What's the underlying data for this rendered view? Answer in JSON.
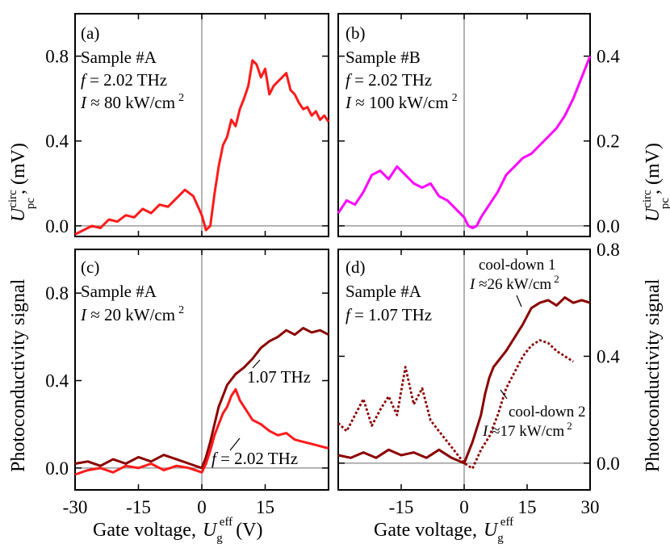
{
  "figure": {
    "left_ylabel_top": "U",
    "left_ylabel_top_sup": "circ",
    "left_ylabel_top_sub": "pc",
    "left_ylabel_top_unit": ", (mV)",
    "right_ylabel_top": "U",
    "right_ylabel_top_sup": "circ",
    "right_ylabel_top_sub": "pc",
    "right_ylabel_top_unit": ", (mV)",
    "left_ylabel_bottom": "Photoconductivity signal",
    "right_ylabel_bottom": "Photoconductivity signal",
    "xlabel_left_text": "Gate voltage,",
    "xlabel_left_sym": "U",
    "xlabel_left_sub": "g",
    "xlabel_left_sup": "eff",
    "xlabel_left_unit": "(V)",
    "xlabel_right_text": "Gate voltage,",
    "xlabel_right_sym": "U",
    "xlabel_right_sub": "g",
    "xlabel_right_sup": "eff",
    "x_ticks_left": [
      "-30",
      "-15",
      "0",
      "15"
    ],
    "x_ticks_right": [
      "-15",
      "0",
      "15",
      "30"
    ]
  },
  "panels": {
    "a": {
      "label": "(a)",
      "line1": "Sample #A",
      "line2_sym": "f",
      "line2_rest": " = 2.02 THz",
      "line3_sym": "I",
      "line3_rest": " ≈ 80 kW/cm",
      "line3_sup": "2",
      "y_ticks": [
        "0.0",
        "0.4",
        "0.8"
      ]
    },
    "b": {
      "label": "(b)",
      "line1": "Sample #B",
      "line2_sym": "f",
      "line2_rest": " = 2.02 THz",
      "line3_sym": "I",
      "line3_rest": " ≈ 100 kW/cm",
      "line3_sup": "2",
      "y_ticks": [
        "0.0",
        "0.2",
        "0.4"
      ]
    },
    "c": {
      "label": "(c)",
      "line1": "Sample #A",
      "line2_sym": "I",
      "line2_rest": " ≈ 20 kW/cm",
      "line2_sup": "2",
      "y_ticks": [
        "0.0",
        "0.4",
        "0.8"
      ],
      "ann_107": "1.07 THz",
      "ann_202_sym": "f",
      "ann_202_rest": " = 2.02 THz"
    },
    "d": {
      "label": "(d)",
      "line1": "Sample #A",
      "line2_sym": "f",
      "line2_rest": " = 1.07 THz",
      "y_ticks": [
        "0.0",
        "0.4",
        "0.8"
      ],
      "cd1": "cool-down 1",
      "cd1_sym": "I",
      "cd1_rest": " ≈26 kW/cm",
      "cd1_sup": "2",
      "cd2": "cool-down 2",
      "cd2_sym": "I",
      "cd2_rest": " ≈17 kW/cm",
      "cd2_sup": "2"
    }
  },
  "chart_data": [
    {
      "type": "line",
      "panel": "a",
      "xlabel": "Gate voltage, U_g^eff (V)",
      "ylabel": "U_pc^circ, (mV)",
      "xlim": [
        -30,
        30
      ],
      "ylim": [
        -0.05,
        1.0
      ],
      "grid": false,
      "series": [
        {
          "color": "#ff1a1a",
          "x": [
            -30,
            -28,
            -26,
            -24,
            -22,
            -20,
            -18,
            -16,
            -14,
            -12,
            -10,
            -8,
            -6,
            -4,
            -2,
            0,
            1,
            2,
            3,
            4,
            5,
            6,
            7,
            8,
            9,
            10,
            11,
            12,
            13,
            14,
            15,
            16,
            17,
            18,
            19,
            20,
            21,
            22,
            23,
            24,
            25,
            26,
            27,
            28,
            29,
            30
          ],
          "y": [
            -0.04,
            -0.02,
            0.0,
            -0.01,
            0.03,
            0.02,
            0.05,
            0.04,
            0.08,
            0.06,
            0.1,
            0.09,
            0.13,
            0.17,
            0.14,
            0.05,
            -0.02,
            0.0,
            0.15,
            0.28,
            0.38,
            0.42,
            0.5,
            0.47,
            0.55,
            0.6,
            0.66,
            0.78,
            0.76,
            0.7,
            0.74,
            0.62,
            0.66,
            0.68,
            0.7,
            0.72,
            0.64,
            0.62,
            0.58,
            0.55,
            0.56,
            0.52,
            0.54,
            0.5,
            0.52,
            0.49
          ]
        }
      ]
    },
    {
      "type": "line",
      "panel": "b",
      "xlabel": "Gate voltage, U_g^eff",
      "ylabel": "U_pc^circ, (mV)",
      "xlim": [
        -30,
        30
      ],
      "ylim": [
        -0.025,
        0.5
      ],
      "grid": false,
      "series": [
        {
          "color": "#ff00ff",
          "x": [
            -30,
            -28,
            -26,
            -24,
            -22,
            -20,
            -18,
            -16,
            -14,
            -12,
            -10,
            -8,
            -6,
            -4,
            -2,
            0,
            1,
            2,
            3,
            4,
            6,
            8,
            10,
            12,
            14,
            16,
            18,
            20,
            22,
            24,
            26,
            28,
            30
          ],
          "y": [
            0.03,
            0.06,
            0.05,
            0.08,
            0.12,
            0.13,
            0.11,
            0.14,
            0.12,
            0.1,
            0.09,
            0.1,
            0.07,
            0.06,
            0.04,
            0.02,
            0.0,
            -0.005,
            0.0,
            0.02,
            0.05,
            0.08,
            0.12,
            0.14,
            0.16,
            0.17,
            0.19,
            0.21,
            0.23,
            0.26,
            0.3,
            0.35,
            0.4
          ]
        }
      ]
    },
    {
      "type": "line",
      "panel": "c",
      "xlabel": "Gate voltage, U_g^eff (V)",
      "ylabel": "Photoconductivity signal",
      "xlim": [
        -30,
        30
      ],
      "ylim": [
        -0.1,
        1.0
      ],
      "grid": false,
      "series": [
        {
          "name": "1.07 THz",
          "color": "#8b0000",
          "x": [
            -30,
            -27,
            -24,
            -21,
            -18,
            -15,
            -12,
            -9,
            -6,
            -3,
            0,
            1,
            2,
            3,
            4,
            5,
            6,
            8,
            10,
            12,
            14,
            16,
            18,
            20,
            22,
            24,
            26,
            28,
            30
          ],
          "y": [
            0.02,
            0.03,
            0.01,
            0.04,
            0.02,
            0.05,
            0.03,
            0.06,
            0.04,
            0.02,
            0.0,
            0.05,
            0.12,
            0.2,
            0.28,
            0.33,
            0.38,
            0.43,
            0.46,
            0.5,
            0.55,
            0.58,
            0.6,
            0.63,
            0.61,
            0.64,
            0.62,
            0.63,
            0.61
          ]
        },
        {
          "name": "f = 2.02 THz",
          "color": "#ff1a1a",
          "x": [
            -30,
            -27,
            -24,
            -21,
            -18,
            -15,
            -12,
            -9,
            -6,
            -3,
            0,
            1,
            2,
            3,
            4,
            5,
            6,
            7,
            8,
            9,
            10,
            11,
            12,
            14,
            16,
            18,
            20,
            22,
            24,
            26,
            28,
            30
          ],
          "y": [
            -0.03,
            -0.01,
            0.0,
            -0.02,
            0.01,
            0.0,
            0.02,
            -0.01,
            0.01,
            0.0,
            -0.02,
            0.02,
            0.08,
            0.15,
            0.2,
            0.25,
            0.28,
            0.33,
            0.36,
            0.31,
            0.28,
            0.25,
            0.22,
            0.2,
            0.17,
            0.15,
            0.16,
            0.13,
            0.12,
            0.11,
            0.1,
            0.09
          ]
        }
      ]
    },
    {
      "type": "line",
      "panel": "d",
      "xlabel": "Gate voltage, U_g^eff",
      "ylabel": "Photoconductivity signal",
      "xlim": [
        -30,
        30
      ],
      "ylim": [
        -0.1,
        0.8
      ],
      "grid": false,
      "series": [
        {
          "name": "cool-down 1",
          "color": "#8b0000",
          "dash": "solid",
          "x": [
            -30,
            -27,
            -24,
            -21,
            -18,
            -15,
            -12,
            -9,
            -6,
            -3,
            0,
            2,
            4,
            5,
            6,
            7,
            8,
            10,
            12,
            14,
            16,
            18,
            20,
            22,
            24,
            26,
            28,
            30
          ],
          "y": [
            0.03,
            0.02,
            0.04,
            0.02,
            0.05,
            0.03,
            0.04,
            0.02,
            0.05,
            0.02,
            0.0,
            0.08,
            0.18,
            0.26,
            0.32,
            0.36,
            0.38,
            0.42,
            0.47,
            0.52,
            0.58,
            0.6,
            0.61,
            0.59,
            0.62,
            0.6,
            0.61,
            0.6
          ]
        },
        {
          "name": "cool-down 2",
          "color": "#8b0000",
          "dash": "dotted",
          "x": [
            -30,
            -28,
            -26,
            -24,
            -22,
            -20,
            -18,
            -16,
            -14,
            -12,
            -10,
            -8,
            -6,
            -4,
            -2,
            0,
            2,
            4,
            6,
            8,
            10,
            12,
            14,
            16,
            18,
            20,
            22,
            24,
            26
          ],
          "y": [
            0.15,
            0.12,
            0.18,
            0.24,
            0.14,
            0.2,
            0.25,
            0.18,
            0.36,
            0.22,
            0.28,
            0.16,
            0.12,
            0.08,
            0.04,
            0.0,
            -0.02,
            0.05,
            0.1,
            0.18,
            0.28,
            0.34,
            0.4,
            0.44,
            0.46,
            0.45,
            0.42,
            0.4,
            0.38
          ]
        }
      ]
    }
  ]
}
